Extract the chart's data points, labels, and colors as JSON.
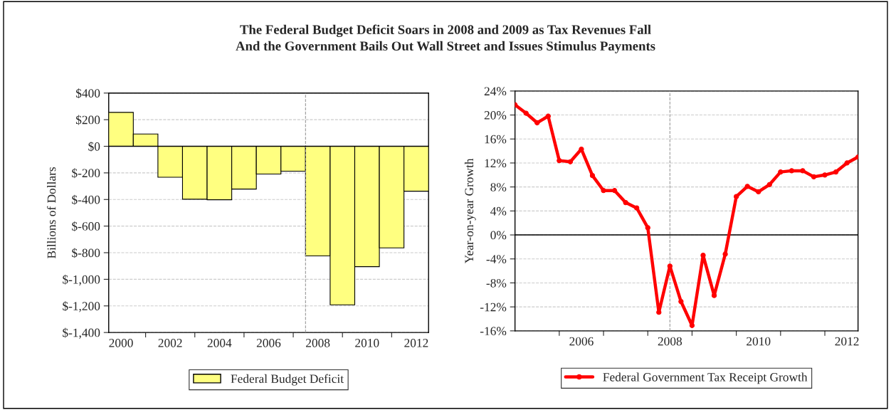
{
  "chart_data": [
    {
      "type": "bar",
      "title": "The Federal Budget Deficit Soars in 2008 and 2009 as Tax Revenues Fall\nAnd the Government Bails Out Wall Street and Issues Stimulus Payments",
      "ylabel": "Billions of Dollars",
      "x": [
        2000,
        2001,
        2002,
        2003,
        2004,
        2005,
        2006,
        2007,
        2008,
        2009,
        2010,
        2011,
        2012
      ],
      "series": [
        {
          "name": "Federal Budget Deficit",
          "color": "#ffff80",
          "values": [
            255,
            92,
            -233,
            -398,
            -402,
            -322,
            -209,
            -187,
            -824,
            -1192,
            -905,
            -764,
            -338
          ]
        }
      ],
      "xlim": [
        1999.5,
        2012.5
      ],
      "xticks": [
        2000,
        {
          "value": 2001,
          "label": null
        },
        2002,
        {
          "value": 2003,
          "label": null
        },
        2004,
        {
          "value": 2005,
          "label": null
        },
        2006,
        {
          "value": 2007,
          "label": null
        },
        2008,
        {
          "value": 2009,
          "label": null
        },
        2010,
        {
          "value": 2011,
          "label": null
        },
        2012
      ],
      "ylim": [
        -1400,
        400
      ],
      "yticks": [
        {
          "value": 400,
          "label": "$400"
        },
        {
          "value": 200,
          "label": "$200"
        },
        {
          "value": 0,
          "label": "$0"
        },
        {
          "value": -200,
          "label": "$-200"
        },
        {
          "value": -400,
          "label": "$-400"
        },
        {
          "value": -600,
          "label": "$-600"
        },
        {
          "value": -800,
          "label": "$-800"
        },
        {
          "value": -1000,
          "label": "$-1,000"
        },
        {
          "value": -1200,
          "label": "$-1,200"
        },
        {
          "value": -1400,
          "label": "$-1,400"
        }
      ],
      "ref_lines": [
        {
          "axis": "x",
          "value": 2007.5,
          "color": "#999999",
          "line_style": "dashed"
        },
        {
          "axis": "y",
          "value": 0,
          "color": "#000000",
          "line_style": "solid"
        }
      ],
      "grid": "y",
      "legend": "bottom"
    },
    {
      "type": "line",
      "ylabel": "Year-on-year Growth",
      "x": [
        2005.0,
        2005.25,
        2005.5,
        2005.75,
        2006.0,
        2006.25,
        2006.5,
        2006.75,
        2007.0,
        2007.25,
        2007.5,
        2007.75,
        2008.0,
        2008.25,
        2008.5,
        2008.75,
        2009.0,
        2009.25,
        2009.5,
        2009.75,
        2010.0,
        2010.25,
        2010.5,
        2010.75,
        2011.0,
        2011.25,
        2011.5,
        2011.75,
        2012.0,
        2012.25,
        2012.5,
        2012.75
      ],
      "series": [
        {
          "name": "Federal Government Tax Receipt Growth",
          "color": "#ff0000",
          "values": [
            21.7,
            20.3,
            18.7,
            19.8,
            12.4,
            12.2,
            14.3,
            9.9,
            7.4,
            7.4,
            5.4,
            4.5,
            1.2,
            -12.9,
            -5.2,
            -11.1,
            -15.1,
            -3.4,
            -10.1,
            -3.2,
            6.4,
            8.1,
            7.2,
            8.4,
            10.5,
            10.7,
            10.7,
            9.7,
            10.0,
            10.5,
            12.0,
            13.0
          ]
        }
      ],
      "xlim": [
        2005,
        2012.75
      ],
      "xticks": [
        {
          "value": 2006,
          "label": null
        },
        {
          "value": 2006.5,
          "label": "2006"
        },
        {
          "value": 2007,
          "label": null
        },
        {
          "value": 2008,
          "label": null
        },
        {
          "value": 2008.5,
          "label": "2008"
        },
        {
          "value": 2009,
          "label": null
        },
        {
          "value": 2010,
          "label": null
        },
        {
          "value": 2010.5,
          "label": "2010"
        },
        {
          "value": 2011,
          "label": null
        },
        {
          "value": 2012,
          "label": null
        },
        {
          "value": 2012.5,
          "label": "2012"
        }
      ],
      "ylim": [
        -16,
        24
      ],
      "yticks": [
        {
          "value": 24,
          "label": "24%"
        },
        {
          "value": 20,
          "label": "20%"
        },
        {
          "value": 16,
          "label": "16%"
        },
        {
          "value": 12,
          "label": "12%"
        },
        {
          "value": 8,
          "label": "8%"
        },
        {
          "value": 4,
          "label": "4%"
        },
        {
          "value": 0,
          "label": "0%"
        },
        {
          "value": -4,
          "label": "-4%"
        },
        {
          "value": -8,
          "label": "-8%"
        },
        {
          "value": -12,
          "label": "-12%"
        },
        {
          "value": -16,
          "label": "-16%"
        }
      ],
      "ref_lines": [
        {
          "axis": "x",
          "value": 2008.5,
          "color": "#999999",
          "line_style": "dashed"
        },
        {
          "axis": "y",
          "value": 0,
          "color": "#000000",
          "line_style": "solid"
        }
      ],
      "grid": "y",
      "legend": "bottom",
      "marker": "circle",
      "line_style": "solid"
    }
  ]
}
